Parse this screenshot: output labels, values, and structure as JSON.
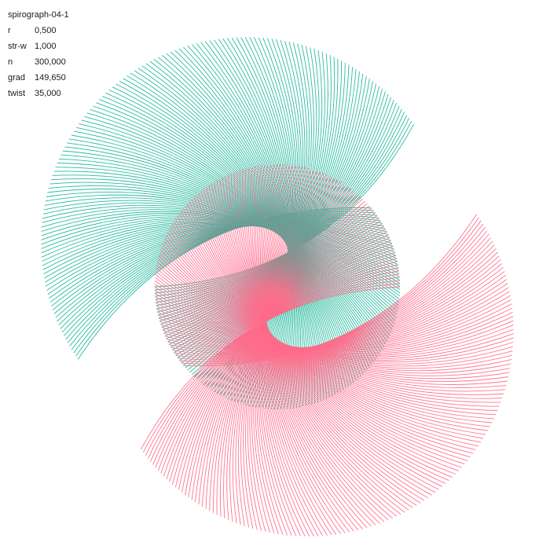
{
  "title": "spirograph-04-1",
  "params": [
    {
      "label": "r",
      "value": "0,500"
    },
    {
      "label": "str-w",
      "value": "1,000"
    },
    {
      "label": "n",
      "value": "300,000"
    },
    {
      "label": "grad",
      "value": "149,650"
    },
    {
      "label": "twist",
      "value": "35,000"
    }
  ],
  "colors": {
    "background": "#ffffff",
    "teal": "#1fb79a",
    "pink": "#ff6b8b",
    "text": "#1a1a1a"
  }
}
